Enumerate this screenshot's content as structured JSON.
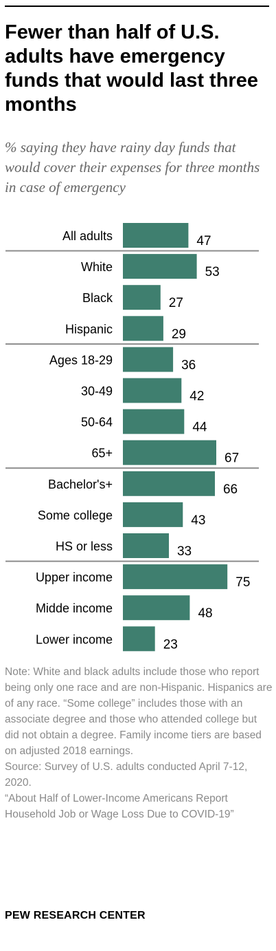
{
  "title": "Fewer than half of U.S. adults have emergency funds that would last three months",
  "subtitle": "% saying they have rainy day funds that would cover their expenses for three months in case of emergency",
  "notes": {
    "note": "Note: White and black adults include those who report being only one race and are non-Hispanic. Hispanics are of any race. “Some college” includes those with an associate degree and those who attended college but did not obtain a degree. Family income tiers are based on adjusted 2018 earnings.",
    "source": "Source: Survey of U.S. adults conducted April 7-12, 2020.",
    "report": "“About Half of Lower-Income Americans Report Household Job or Wage Loss Due to COVID-19”"
  },
  "brand": "PEW RESEARCH CENTER",
  "colors": {
    "bar": "#3f7f6f",
    "divider": "#8c8c8c"
  },
  "chart_data": {
    "type": "bar",
    "orientation": "horizontal",
    "categories": [
      "All adults",
      "White",
      "Black",
      "Hispanic",
      "Ages 18-29",
      "30-49",
      "50-64",
      "65+",
      "Bachelor's+",
      "Some college",
      "HS or less",
      "Upper income",
      "Midde income",
      "Lower income"
    ],
    "values": [
      47,
      53,
      27,
      29,
      36,
      42,
      44,
      67,
      66,
      43,
      33,
      75,
      48,
      23
    ],
    "groups": [
      [
        "All adults"
      ],
      [
        "White",
        "Black",
        "Hispanic"
      ],
      [
        "Ages 18-29",
        "30-49",
        "50-64",
        "65+"
      ],
      [
        "Bachelor's+",
        "Some college",
        "HS or less"
      ],
      [
        "Upper income",
        "Midde income",
        "Lower income"
      ]
    ],
    "xlim": [
      0,
      100
    ],
    "grid": false,
    "legend": "none"
  }
}
